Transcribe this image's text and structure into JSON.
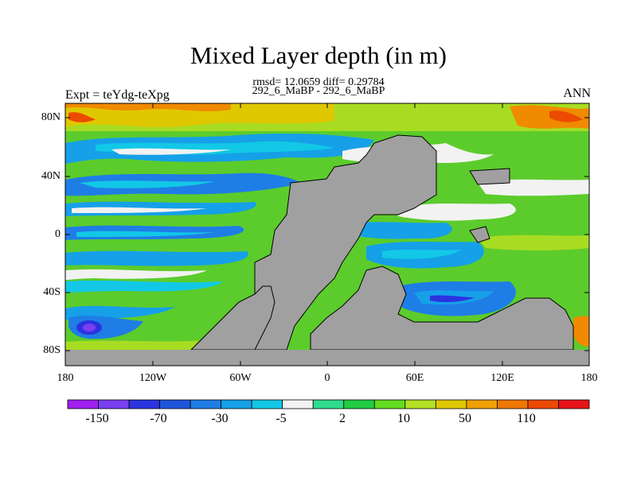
{
  "title": "Mixed Layer depth (in m)",
  "stats_line": "rmsd= 12.0659 diff= 0.29784",
  "subtitle": "292_6_MaBP - 292_6_MaBP",
  "left_label": "Expt = teYdg-teXpg",
  "right_label": "ANN",
  "lat_labels": [
    "80N",
    "40N",
    "0",
    "40S",
    "80S"
  ],
  "lon_labels": [
    "180",
    "120W",
    "60W",
    "0",
    "60E",
    "120E",
    "180"
  ],
  "colorbar": {
    "labels": [
      "-150",
      "-70",
      "-30",
      "-5",
      "2",
      "10",
      "50",
      "110"
    ],
    "colors": [
      "#a020f0",
      "#7a3ff0",
      "#2b33e0",
      "#1e55dc",
      "#1f7de6",
      "#16a0e8",
      "#12c8e6",
      "#f2f2f2",
      "#2fdc8c",
      "#22cc44",
      "#62dc20",
      "#b2e024",
      "#e0c800",
      "#f0a000",
      "#f07800",
      "#ec4a00",
      "#e8141a"
    ]
  },
  "colors": {
    "land": "#a0a0a0",
    "ocean_green": "#5ccc2c",
    "ocean_lime": "#a8dc22",
    "ocean_yellow": "#e0c800",
    "ocean_orange": "#f08a00",
    "ocean_red": "#ec4a00",
    "ocean_lightblue": "#16a0e8",
    "ocean_cyan": "#12c8e6",
    "ocean_blue": "#1f7de6",
    "ocean_white": "#f2f2f2",
    "ocean_purple": "#7a3ff0"
  }
}
